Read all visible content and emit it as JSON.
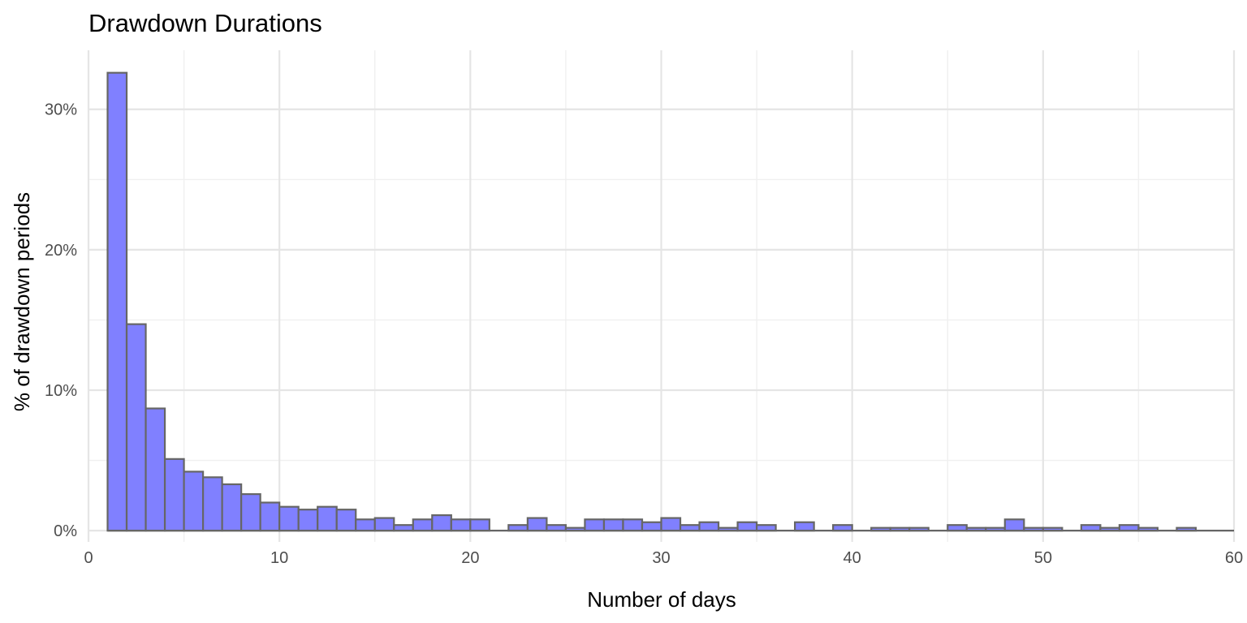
{
  "chart_data": {
    "type": "bar",
    "title": "Drawdown Durations",
    "xlabel": "Number of days",
    "ylabel": "% of drawdown periods",
    "xlim": [
      0,
      60
    ],
    "ylim": [
      -0.8,
      34.2
    ],
    "x_ticks": [
      0,
      10,
      20,
      30,
      40,
      50,
      60
    ],
    "x_tick_labels": [
      "0",
      "10",
      "20",
      "30",
      "40",
      "50",
      "60"
    ],
    "y_ticks": [
      0,
      10,
      20,
      30
    ],
    "y_tick_labels": [
      "0%",
      "10%",
      "20%",
      "30%"
    ],
    "grid": true,
    "bar_color": "#8080ff",
    "bar_border_color": "#666666",
    "bin_width": 1,
    "bins_start": [
      1,
      2,
      3,
      4,
      5,
      6,
      7,
      8,
      9,
      10,
      11,
      12,
      13,
      14,
      15,
      16,
      17,
      18,
      19,
      20,
      21,
      22,
      23,
      24,
      25,
      26,
      27,
      28,
      29,
      30,
      31,
      32,
      33,
      34,
      35,
      36,
      37,
      38,
      39,
      40,
      41,
      42,
      43,
      44,
      45,
      46,
      47,
      48,
      49,
      50,
      51,
      52,
      53,
      54,
      55,
      56,
      57,
      58
    ],
    "values": [
      32.6,
      14.7,
      8.7,
      5.1,
      4.2,
      3.8,
      3.3,
      2.6,
      2.0,
      1.7,
      1.5,
      1.7,
      1.5,
      0.8,
      0.9,
      0.4,
      0.8,
      1.1,
      0.8,
      0.8,
      0,
      0.4,
      0.9,
      0.4,
      0.2,
      0.8,
      0.8,
      0.8,
      0.6,
      0.9,
      0.4,
      0.6,
      0.2,
      0.6,
      0.4,
      0,
      0.6,
      0,
      0.4,
      0,
      0.2,
      0.2,
      0.2,
      0,
      0.4,
      0.2,
      0.2,
      0.8,
      0.2,
      0.2,
      0,
      0.4,
      0.2,
      0.4,
      0.2,
      0,
      0.2,
      0
    ]
  }
}
